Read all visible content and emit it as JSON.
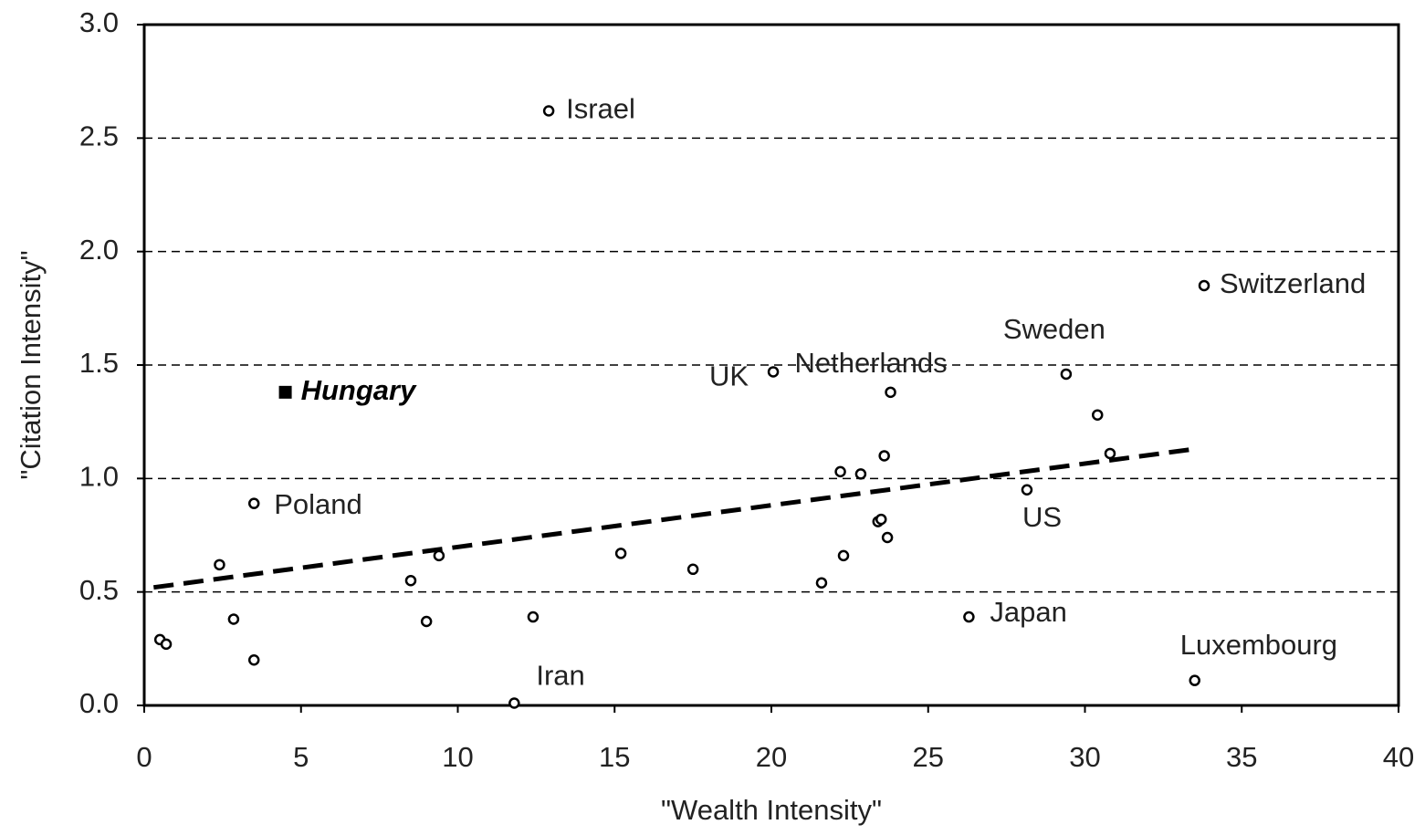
{
  "chart_data": {
    "type": "scatter",
    "x_label": "\"Wealth Intensity\"",
    "y_label": "\"Citation Intensity\"",
    "xlim": [
      0,
      40
    ],
    "ylim": [
      0,
      3
    ],
    "xticks": [
      0,
      5,
      10,
      15,
      20,
      25,
      30,
      35,
      40
    ],
    "yticks": [
      {
        "value": 0,
        "label": "0.0"
      },
      {
        "value": 0.5,
        "label": "0.5"
      },
      {
        "value": 1,
        "label": "1.0"
      },
      {
        "value": 1.5,
        "label": "1.5"
      },
      {
        "value": 2,
        "label": "2.0"
      },
      {
        "value": 2.5,
        "label": "2.5"
      },
      {
        "value": 3,
        "label": "3.0"
      }
    ],
    "grid": true,
    "series": [
      {
        "marker": "circle",
        "color": "#000000",
        "x": [
          12.9,
          33.8,
          29.4,
          23.8,
          20.06,
          3.5,
          28.15,
          26.3,
          33.5,
          11.8,
          30.4,
          30.8,
          23.6,
          22.2,
          22.85,
          23.4,
          23.5,
          23.7,
          22.3,
          21.6,
          17.5,
          15.2,
          9.4,
          8.5,
          9.0,
          12.4,
          2.4,
          2.85,
          3.5,
          0.5,
          0.7
        ],
        "y": [
          2.62,
          1.85,
          1.46,
          1.38,
          1.47,
          0.89,
          0.95,
          0.39,
          0.11,
          0.01,
          1.28,
          1.11,
          1.1,
          1.03,
          1.02,
          0.81,
          0.82,
          0.74,
          0.66,
          0.54,
          0.6,
          0.67,
          0.66,
          0.55,
          0.37,
          0.39,
          0.62,
          0.38,
          0.2,
          0.29,
          0.27
        ],
        "labels": [
          "Israel",
          "Switzerland",
          "Sweden",
          "Netherlands",
          "UK",
          "Poland",
          "US",
          "Japan",
          "Luxembourg",
          "Iran",
          null,
          null,
          null,
          null,
          null,
          null,
          null,
          null,
          null,
          null,
          null,
          null,
          null,
          null,
          null,
          null,
          null,
          null,
          null,
          null,
          null
        ]
      },
      {
        "marker": "square",
        "color": "#000000",
        "x": [
          4.5
        ],
        "y": [
          1.38
        ],
        "labels": [
          "Hungary"
        ]
      }
    ],
    "trendline": {
      "x": [
        0.3,
        33.5
      ],
      "y": [
        0.52,
        1.13
      ],
      "color": "#000000"
    }
  }
}
